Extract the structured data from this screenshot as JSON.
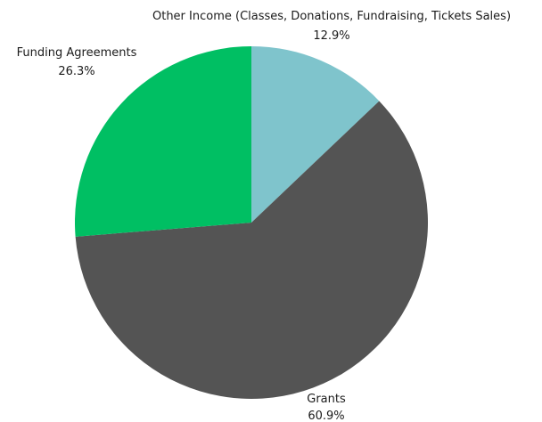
{
  "chart_data": {
    "type": "pie",
    "title": "",
    "slices": [
      {
        "label": "Other Income (Classes, Donations, Fundraising, Tickets Sales)",
        "value": 12.9,
        "value_label": "12.9%",
        "color": "#7fc4cc"
      },
      {
        "label": "Grants",
        "value": 60.9,
        "value_label": "60.9%",
        "color": "#545454"
      },
      {
        "label": "Funding Agreements",
        "value": 26.3,
        "value_label": "26.3%",
        "color": "#00bf63"
      }
    ],
    "start_angle": "12 o'clock",
    "direction": "clockwise",
    "legend": "none",
    "labels": "outside"
  }
}
